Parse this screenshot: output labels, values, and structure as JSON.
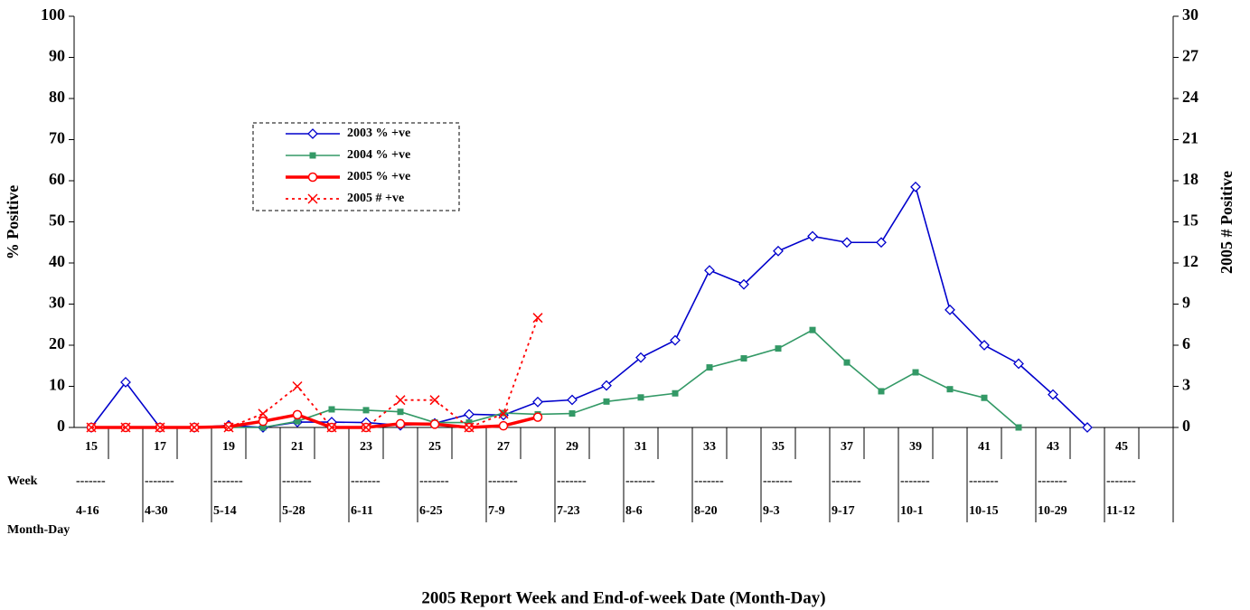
{
  "chart_data": {
    "type": "line",
    "x_title": "2005 Report Week and End-of-week Date (Month-Day)",
    "y_title": "% Positive",
    "y2_title": "2005 # Positive",
    "row_label_week": "Week",
    "row_label_date": "Month-Day",
    "separator": "-------",
    "categories": [
      "15",
      null,
      "17",
      null,
      "19",
      null,
      "21",
      null,
      "23",
      null,
      "25",
      null,
      "27",
      null,
      "29",
      null,
      "31",
      null,
      "33",
      null,
      "35",
      null,
      "37",
      null,
      "39",
      null,
      "41",
      null,
      "43",
      null,
      "45",
      null
    ],
    "dates": [
      "4-16",
      "4-30",
      "5-14",
      "5-28",
      "6-11",
      "6-25",
      "7-9",
      "7-23",
      "8-6",
      "8-20",
      "9-3",
      "9-17",
      "10-1",
      "10-15",
      "10-29",
      "11-12"
    ],
    "ylim": [
      0,
      100
    ],
    "yticks": [
      0,
      10,
      20,
      30,
      40,
      50,
      60,
      70,
      80,
      90,
      100
    ],
    "y2lim": [
      0,
      30
    ],
    "y2ticks": [
      0,
      3,
      6,
      9,
      12,
      15,
      18,
      21,
      24,
      27,
      30
    ],
    "series": [
      {
        "name": "2003 % +ve",
        "color": "#0000cc",
        "marker": "diamond",
        "values": [
          0,
          11,
          0,
          0,
          0.5,
          0,
          1.3,
          1.3,
          1.2,
          0.5,
          1,
          3.2,
          3,
          6.2,
          6.7,
          10.2,
          17,
          21.2,
          38.2,
          34.8,
          42.9,
          46.5,
          45,
          45,
          58.5,
          28.6,
          20,
          15.5,
          8,
          0,
          null,
          null
        ]
      },
      {
        "name": "2004 % +ve",
        "color": "#339966",
        "marker": "square",
        "values": [
          0,
          0,
          0,
          0,
          0,
          0,
          1.5,
          4.4,
          4.2,
          3.8,
          1.2,
          1.2,
          3.5,
          3.2,
          3.4,
          6.3,
          7.3,
          8.3,
          14.6,
          16.8,
          19.2,
          23.7,
          15.8,
          8.8,
          13.4,
          9.3,
          7.2,
          0,
          null,
          null,
          null,
          null
        ]
      },
      {
        "name": "2005 % +ve",
        "color": "#ff0000",
        "marker": "circle",
        "values": [
          0,
          0,
          0,
          0,
          0.2,
          1.5,
          3.1,
          0,
          0,
          0.9,
          0.8,
          0,
          0.4,
          2.5,
          null,
          null,
          null,
          null,
          null,
          null,
          null,
          null,
          null,
          null,
          null,
          null,
          null,
          null,
          null,
          null,
          null,
          null
        ]
      },
      {
        "name": "2005 #  +ve",
        "color": "#ff0000",
        "marker": "x",
        "axis": "y2",
        "dash": true,
        "values": [
          0,
          0,
          0,
          0,
          0,
          1,
          3,
          0,
          0,
          2,
          2,
          0,
          1,
          8,
          null,
          null,
          null,
          null,
          null,
          null,
          null,
          null,
          null,
          null,
          null,
          null,
          null,
          null,
          null,
          null,
          null,
          null
        ]
      }
    ]
  }
}
